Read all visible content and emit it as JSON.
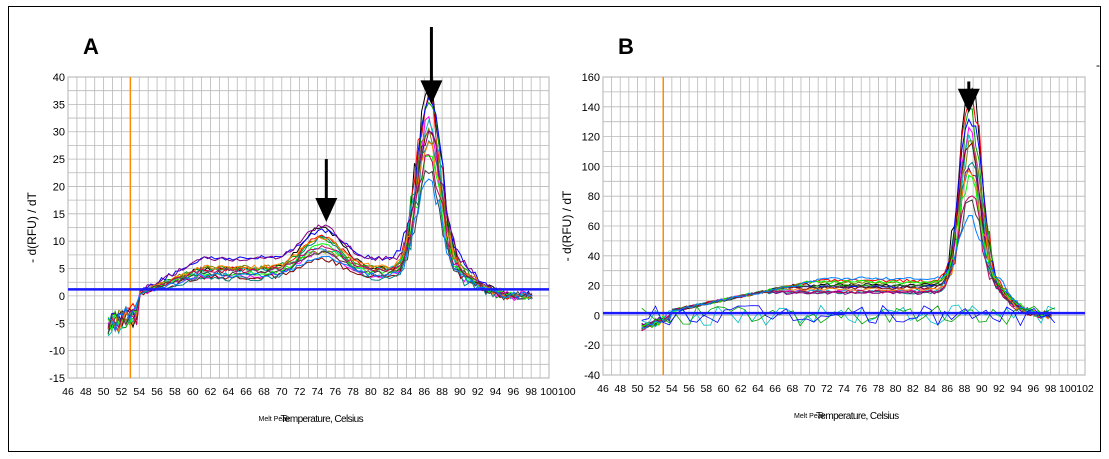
{
  "panels": [
    {
      "letter": "A"
    },
    {
      "letter": "B"
    }
  ],
  "corner_mark": "-",
  "chart_data": [
    {
      "type": "line",
      "panel": "A",
      "ylabel": "- d(RFU) / dT",
      "xlabel": "Temperature, Celsius",
      "xlabel_overlap": "Melt Peak",
      "xlabel_overlap2": "Temperature) 12Celsius",
      "xlim": [
        46,
        100
      ],
      "ylim": [
        -15,
        40
      ],
      "x_ticks": [
        "46",
        "48",
        "50",
        "52",
        "54",
        "56",
        "58",
        "60",
        "62",
        "64",
        "66",
        "68",
        "70",
        "72",
        "74",
        "76",
        "78",
        "80",
        "82",
        "84",
        "86",
        "88",
        "90",
        "92",
        "94",
        "96",
        "98",
        "100",
        "100"
      ],
      "y_ticks": [
        -15,
        -10,
        -5,
        0,
        5,
        10,
        15,
        20,
        25,
        30,
        35,
        40
      ],
      "grid": true,
      "threshold": 1.2,
      "vline_x": 53,
      "arrows": [
        {
          "x": 86.8,
          "y_from": 40,
          "y_to": 35
        },
        {
          "x": 75,
          "y_from": 25,
          "y_to": 13.5
        }
      ],
      "peak_x": 86.5,
      "peak_heights": [
        33.5,
        32,
        31,
        30,
        29,
        28,
        27,
        26,
        25,
        24,
        23,
        22,
        21,
        19,
        18
      ],
      "secondary_peak_x": 74.5,
      "secondary_peak_heights": [
        12.5,
        10,
        9,
        8.5,
        7.5,
        6.5,
        5.5,
        5
      ],
      "series_colors": [
        "#000000",
        "#ff0000",
        "#00a000",
        "#0000ff",
        "#ff00ff",
        "#00c0c0",
        "#800000",
        "#808000",
        "#008080",
        "#800080",
        "#ff8000",
        "#00ff00",
        "#c00060",
        "#404040",
        "#0080ff"
      ]
    },
    {
      "type": "line",
      "panel": "B",
      "ylabel": "- d(RFU) / dT",
      "xlabel": "Temperature, Celsius",
      "xlabel_overlap": "Melt Peak",
      "xlabel_overlap2": "Temperature) 12Celsius",
      "xlim": [
        46,
        102
      ],
      "ylim": [
        -40,
        160
      ],
      "x_ticks": [
        "46",
        "48",
        "50",
        "52",
        "54",
        "56",
        "58",
        "60",
        "62",
        "64",
        "66",
        "68",
        "70",
        "72",
        "74",
        "76",
        "78",
        "80",
        "82",
        "84",
        "86",
        "88",
        "90",
        "92",
        "94",
        "96",
        "98",
        "100",
        "102"
      ],
      "y_ticks": [
        -40,
        -20,
        0,
        20,
        40,
        60,
        80,
        100,
        120,
        140,
        160
      ],
      "grid": true,
      "threshold": 1.5,
      "vline_x": 53,
      "arrows": [
        {
          "x": 88.5,
          "y_from": 157,
          "y_to": 136
        }
      ],
      "peak_x": 88.7,
      "peak_heights": [
        135,
        128,
        120,
        115,
        110,
        105,
        100,
        95,
        90,
        85,
        80,
        72,
        65,
        58,
        42
      ],
      "series_colors": [
        "#000000",
        "#ff0000",
        "#00a000",
        "#0000ff",
        "#ff00ff",
        "#00c0c0",
        "#800000",
        "#808000",
        "#008080",
        "#800080",
        "#ff8000",
        "#00ff00",
        "#c00060",
        "#404040",
        "#0080ff"
      ]
    }
  ]
}
